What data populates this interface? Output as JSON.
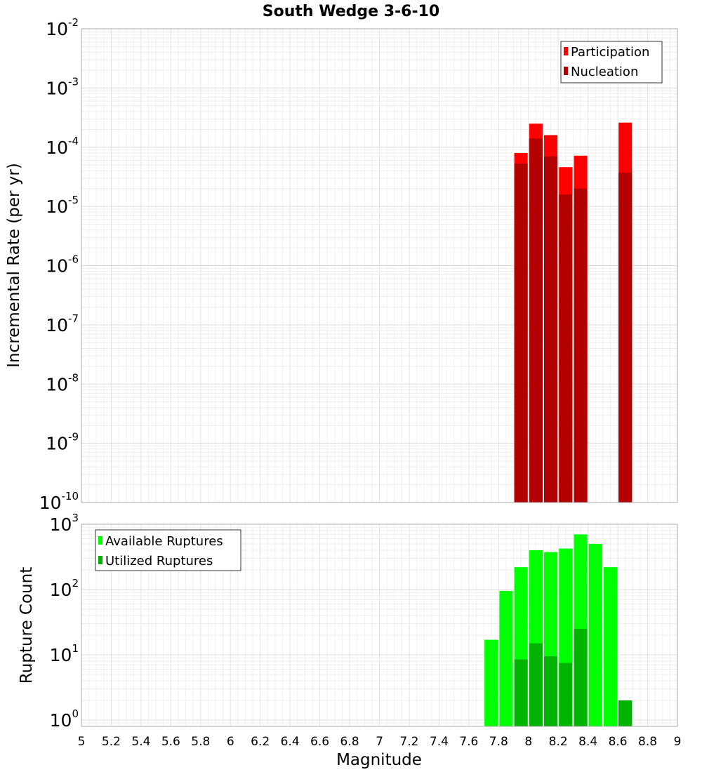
{
  "chart_data": [
    {
      "type": "bar",
      "title": "South Wedge 3-6-10",
      "ylabel": "Incremental Rate (per yr)",
      "xlabel": "",
      "yscale": "log",
      "ylim": [
        1e-10,
        0.01
      ],
      "xlim": [
        5,
        9
      ],
      "grid": true,
      "legend_position": "top-right",
      "y_ticks": [
        {
          "base": "10",
          "exp": "-10"
        },
        {
          "base": "10",
          "exp": "-9"
        },
        {
          "base": "10",
          "exp": "-8"
        },
        {
          "base": "10",
          "exp": "-7"
        },
        {
          "base": "10",
          "exp": "-6"
        },
        {
          "base": "10",
          "exp": "-5"
        },
        {
          "base": "10",
          "exp": "-4"
        },
        {
          "base": "10",
          "exp": "-3"
        },
        {
          "base": "10",
          "exp": "-2"
        }
      ],
      "x": [
        7.95,
        8.05,
        8.15,
        8.25,
        8.35,
        8.65
      ],
      "series": [
        {
          "name": "Participation",
          "color": "#ff0000",
          "values": [
            8e-05,
            0.00025,
            0.00016,
            4.6e-05,
            7.2e-05,
            0.00026
          ]
        },
        {
          "name": "Nucleation",
          "color": "#b30000",
          "values": [
            5.3e-05,
            0.00014,
            7e-05,
            1.6e-05,
            2e-05,
            3.7e-05
          ]
        }
      ]
    },
    {
      "type": "bar",
      "title": "",
      "ylabel": "Rupture Count",
      "xlabel": "Magnitude",
      "yscale": "log",
      "ylim": [
        0.8,
        1000
      ],
      "xlim": [
        5,
        9
      ],
      "grid": true,
      "legend_position": "top-left",
      "y_ticks": [
        {
          "base": "10",
          "exp": "0",
          "value": 1
        },
        {
          "base": "10",
          "exp": "1",
          "value": 10
        },
        {
          "base": "10",
          "exp": "2",
          "value": 100
        },
        {
          "base": "10",
          "exp": "3",
          "value": 1000
        }
      ],
      "x_ticks": [
        "5",
        "5.2",
        "5.4",
        "5.6",
        "5.8",
        "6",
        "6.2",
        "6.4",
        "6.6",
        "6.8",
        "7",
        "7.2",
        "7.4",
        "7.6",
        "7.8",
        "8",
        "8.2",
        "8.4",
        "8.6",
        "8.8",
        "9"
      ],
      "x": [
        7.75,
        7.85,
        7.95,
        8.05,
        8.15,
        8.25,
        8.35,
        8.45,
        8.55,
        8.65
      ],
      "series": [
        {
          "name": "Available Ruptures",
          "color": "#00ff00",
          "values": [
            17,
            95,
            220,
            400,
            375,
            425,
            700,
            500,
            220,
            2
          ]
        },
        {
          "name": "Utilized Ruptures",
          "color": "#00b300",
          "values": [
            0,
            0,
            8.5,
            15,
            9.5,
            7.5,
            25,
            0,
            0,
            2
          ]
        }
      ]
    }
  ]
}
